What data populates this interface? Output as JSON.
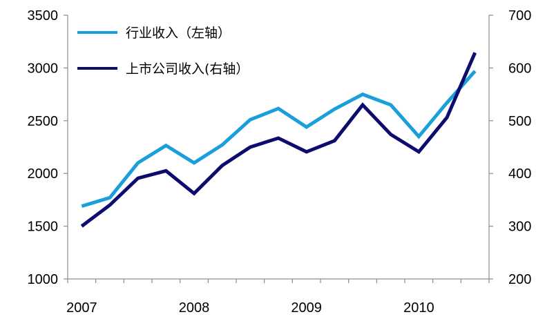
{
  "chart_data": {
    "type": "line",
    "title": "",
    "x_labels": [
      "2007",
      "2008",
      "2009",
      "2010"
    ],
    "left_axis": {
      "range": [
        1000,
        3500
      ],
      "ticks": [
        "1000",
        "1500",
        "2000",
        "2500",
        "3000",
        "3500"
      ]
    },
    "right_axis": {
      "range": [
        200,
        700
      ],
      "ticks": [
        "200",
        "300",
        "400",
        "500",
        "600",
        "700"
      ]
    },
    "grid": false,
    "legend_position": "top-left",
    "series": [
      {
        "name": "行业收入（左轴）",
        "axis": "left",
        "color": "#1a9fdb",
        "values": [
          1690,
          1770,
          2100,
          2265,
          2100,
          2270,
          2510,
          2615,
          2440,
          2610,
          2750,
          2650,
          2350,
          2670,
          2970
        ]
      },
      {
        "name": "上市公司收入(右轴）",
        "axis": "right",
        "color": "#0c0c6e",
        "values": [
          300,
          340,
          391,
          405,
          362,
          415,
          450,
          467,
          441,
          462,
          530,
          474,
          441,
          506,
          629
        ]
      }
    ]
  }
}
